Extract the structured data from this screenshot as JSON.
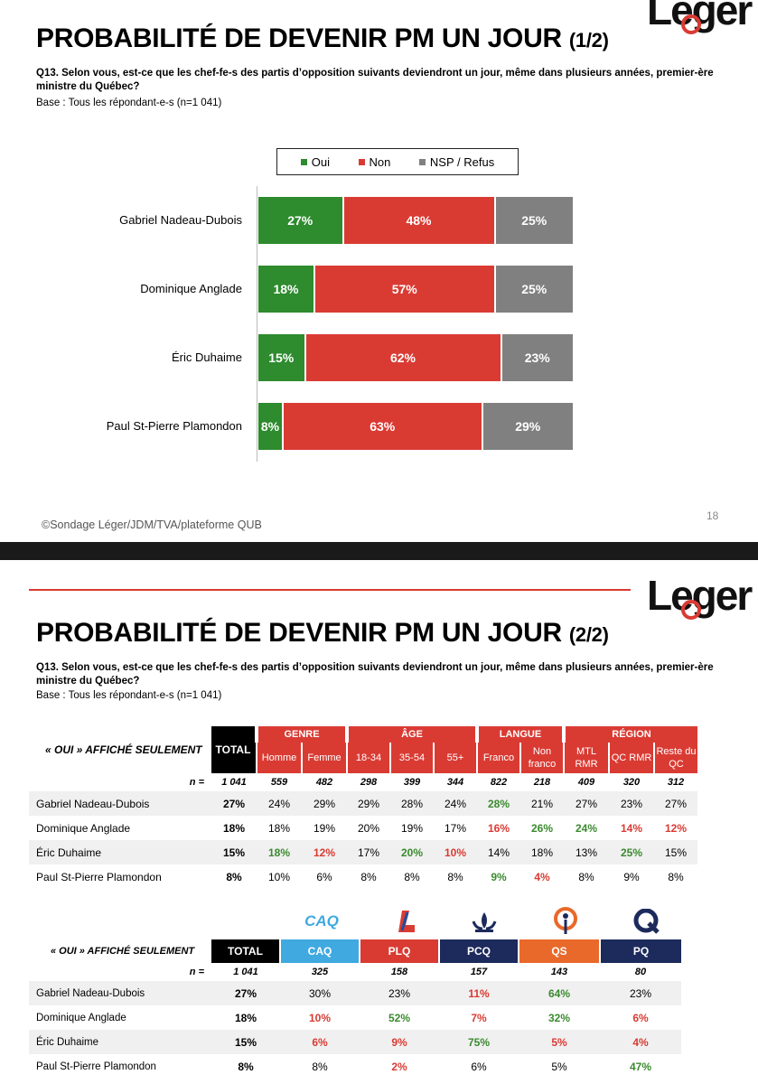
{
  "slide1": {
    "logo": "Leger",
    "title": "PROBABILITÉ DE DEVENIR PM UN JOUR",
    "title_part": "(1/2)",
    "question": "Q13. Selon vous, est-ce que les chef-fe-s des partis d’opposition suivants deviendront un jour, même dans plusieurs années, premier-ère ministre du Québec?",
    "base": "Base : Tous les répondant-e-s (n=1 041)",
    "footer": "©Sondage Léger/JDM/TVA/plateforme QUB",
    "page_number": "18",
    "legend": [
      "Oui",
      "Non",
      "NSP / Refus"
    ]
  },
  "chart_data": {
    "type": "bar",
    "stacked": true,
    "orientation": "horizontal",
    "categories": [
      "Gabriel Nadeau-Dubois",
      "Dominique Anglade",
      "Éric Duhaime",
      "Paul St-Pierre Plamondon"
    ],
    "series": [
      {
        "name": "Oui",
        "color": "#2e8b2e",
        "values": [
          27,
          18,
          15,
          8
        ]
      },
      {
        "name": "Non",
        "color": "#d93b33",
        "values": [
          48,
          57,
          62,
          63
        ]
      },
      {
        "name": "NSP / Refus",
        "color": "#808080",
        "values": [
          25,
          25,
          23,
          29
        ]
      }
    ],
    "value_labels": [
      [
        "27%",
        "48%",
        "25%"
      ],
      [
        "18%",
        "57%",
        "25%"
      ],
      [
        "15%",
        "62%",
        "23%"
      ],
      [
        "8%",
        "63%",
        "29%"
      ]
    ],
    "legend_position": "top"
  },
  "slide2": {
    "logo": "Leger",
    "title": "PROBABILITÉ DE DEVENIR PM UN JOUR",
    "title_part": "(2/2)",
    "question": "Q13. Selon vous, est-ce que les chef-fe-s des partis d’opposition suivants deviendront un jour, même dans plusieurs années, premier-ère ministre du Québec?",
    "base": "Base : Tous les répondant-e-s (n=1 041)",
    "table1": {
      "row_header": "« OUI » AFFICHÉ SEULEMENT",
      "total_label": "TOTAL",
      "groups": [
        "GENRE",
        "ÂGE",
        "LANGUE",
        "RÉGION"
      ],
      "columns": [
        "Homme",
        "Femme",
        "18-34",
        "35-54",
        "55+",
        "Franco",
        "Non franco",
        "MTL RMR",
        "QC RMR",
        "Reste du QC"
      ],
      "n_label": "n =",
      "n_values": [
        "1 041",
        "559",
        "482",
        "298",
        "399",
        "344",
        "822",
        "218",
        "409",
        "320",
        "312"
      ],
      "rows": [
        {
          "name": "Gabriel Nadeau-Dubois",
          "cells": [
            "27%",
            "24%",
            "29%",
            "29%",
            "28%",
            "24%",
            "28%",
            "21%",
            "27%",
            "23%",
            "27%"
          ],
          "hl": [
            "",
            "",
            "",
            "",
            "",
            "",
            "g",
            "",
            "",
            "",
            ""
          ]
        },
        {
          "name": "Dominique Anglade",
          "cells": [
            "18%",
            "18%",
            "19%",
            "20%",
            "19%",
            "17%",
            "16%",
            "26%",
            "24%",
            "14%",
            "12%"
          ],
          "hl": [
            "",
            "",
            "",
            "",
            "",
            "",
            "r",
            "g",
            "g",
            "r",
            "r"
          ]
        },
        {
          "name": "Éric Duhaime",
          "cells": [
            "15%",
            "18%",
            "12%",
            "17%",
            "20%",
            "10%",
            "14%",
            "18%",
            "13%",
            "25%",
            "15%"
          ],
          "hl": [
            "",
            "g",
            "r",
            "",
            "g",
            "r",
            "",
            "",
            "",
            "g",
            ""
          ]
        },
        {
          "name": "Paul St-Pierre Plamondon",
          "cells": [
            "8%",
            "10%",
            "6%",
            "8%",
            "8%",
            "8%",
            "9%",
            "4%",
            "8%",
            "9%",
            "8%"
          ],
          "hl": [
            "",
            "",
            "",
            "",
            "",
            "",
            "g",
            "r",
            "",
            "",
            ""
          ]
        }
      ]
    },
    "table2": {
      "row_header": "« OUI » AFFICHÉ SEULEMENT",
      "total_label": "TOTAL",
      "columns": [
        "CAQ",
        "PLQ",
        "PCQ",
        "QS",
        "PQ"
      ],
      "column_colors": [
        "#3fa9e0",
        "#d93b33",
        "#1c2a5c",
        "#e8692a",
        "#1c2a5c"
      ],
      "logos": [
        "CAQ",
        "",
        "",
        "",
        ""
      ],
      "n_label": "n =",
      "n_values": [
        "1 041",
        "325",
        "158",
        "157",
        "143",
        "80"
      ],
      "rows": [
        {
          "name": "Gabriel Nadeau-Dubois",
          "cells": [
            "27%",
            "30%",
            "23%",
            "11%",
            "64%",
            "23%"
          ],
          "hl": [
            "",
            "",
            "",
            "r",
            "g",
            ""
          ]
        },
        {
          "name": "Dominique Anglade",
          "cells": [
            "18%",
            "10%",
            "52%",
            "7%",
            "32%",
            "6%"
          ],
          "hl": [
            "",
            "r",
            "g",
            "r",
            "g",
            "r"
          ]
        },
        {
          "name": "Éric Duhaime",
          "cells": [
            "15%",
            "6%",
            "9%",
            "75%",
            "5%",
            "4%"
          ],
          "hl": [
            "",
            "r",
            "r",
            "g",
            "r",
            "r"
          ]
        },
        {
          "name": "Paul St-Pierre Plamondon",
          "cells": [
            "8%",
            "8%",
            "2%",
            "6%",
            "5%",
            "47%"
          ],
          "hl": [
            "",
            "",
            "r",
            "",
            "",
            "g"
          ]
        }
      ]
    }
  }
}
